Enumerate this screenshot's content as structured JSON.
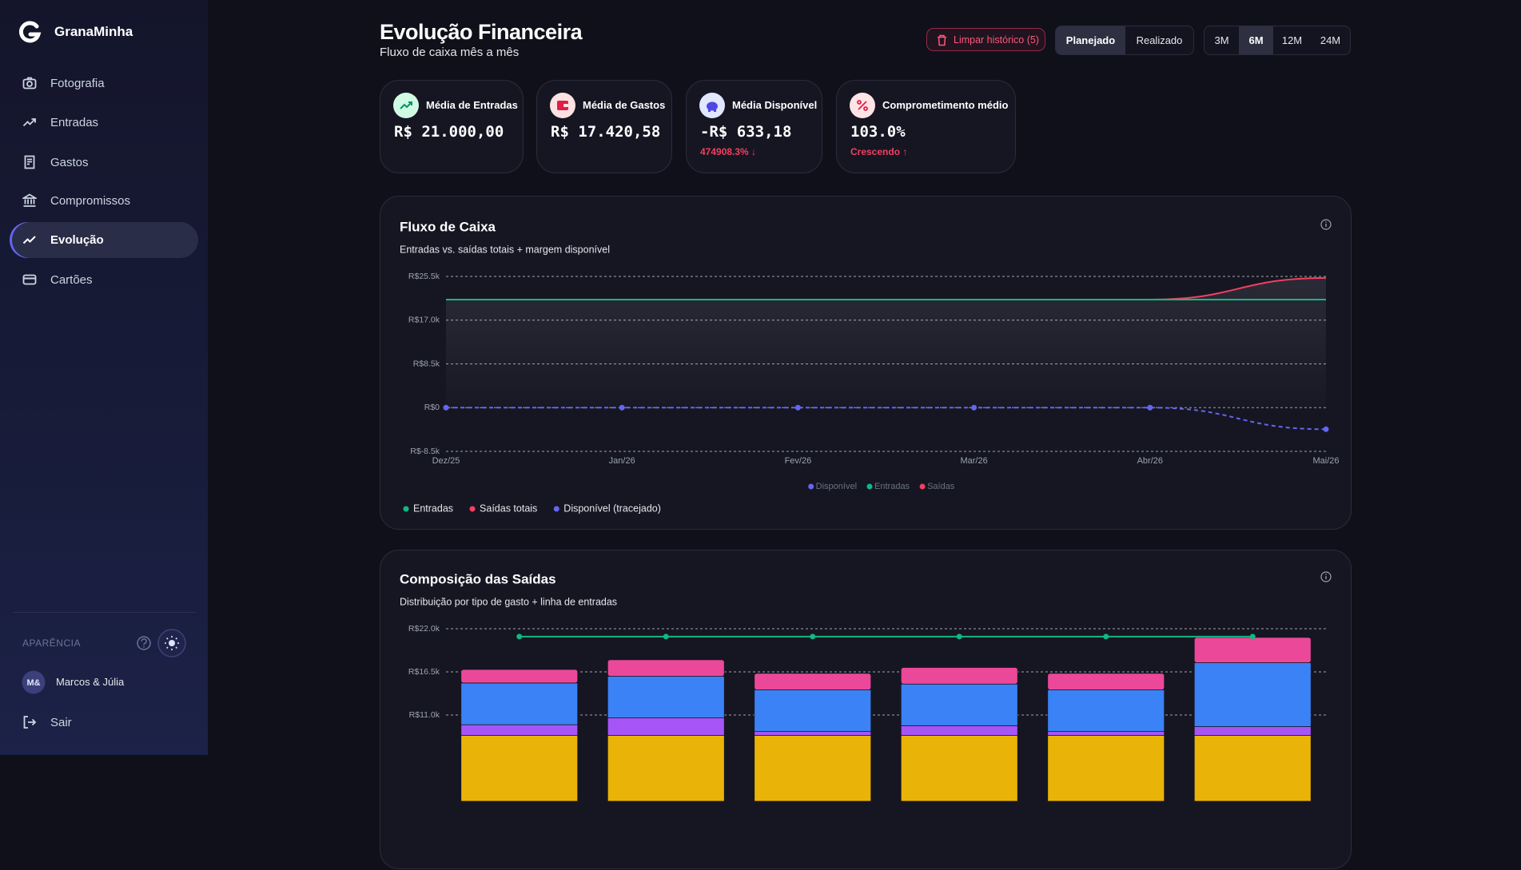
{
  "sidebar": {
    "brand": "GranaMinha",
    "nav": [
      "Fotografia",
      "Entradas",
      "Gastos",
      "Compromissos",
      "Evolução",
      "Cartões"
    ],
    "appearance": "APARÊNCIA",
    "user_initials": "M&",
    "user_name": "Marcos & Júlia",
    "logout": "Sair"
  },
  "header": {
    "title": "Evolução Financeira",
    "subtitle": "Fluxo de caixa mês a mês",
    "clear_history": "Limpar histórico (5)",
    "modes": [
      "Planejado",
      "Realizado"
    ],
    "periods": [
      "3M",
      "6M",
      "12M",
      "24M"
    ]
  },
  "stats": [
    {
      "label": "Média de Entradas",
      "value": "R$ 21.000,00"
    },
    {
      "label": "Média de Gastos",
      "value": "R$ 17.420,58"
    },
    {
      "label": "Média Disponível",
      "value": "-R$ 633,18",
      "note": "474908.3% ↓"
    },
    {
      "label": "Comprometimento médio",
      "value": "103.0%",
      "note": "Crescendo ↑"
    }
  ],
  "chart_data": [
    {
      "type": "line",
      "title": "Fluxo de Caixa",
      "subtitle": "Entradas vs. saídas totais + margem disponível",
      "categories": [
        "Dez/25",
        "Jan/26",
        "Fev/26",
        "Mar/26",
        "Abr/26",
        "Mai/26"
      ],
      "series": [
        {
          "name": "Disponível",
          "color": "#6366f1",
          "dashed": true,
          "markers": true,
          "values": [
            0,
            0,
            0,
            0,
            0,
            -4200
          ]
        },
        {
          "name": "Entradas",
          "color": "#10b981",
          "values": [
            21000,
            21000,
            21000,
            21000,
            21000,
            21000
          ]
        },
        {
          "name": "Saídas",
          "color": "#f43f5e",
          "area": true,
          "values": [
            21000,
            21000,
            21000,
            21000,
            21000,
            25200
          ]
        }
      ],
      "ylim": [
        -8500,
        25500
      ],
      "yticks": [
        {
          "value": 25500,
          "label": "R$25.5k"
        },
        {
          "value": 17000,
          "label": "R$17.0k"
        },
        {
          "value": 8500,
          "label": "R$8.5k"
        },
        {
          "value": 0,
          "label": "R$0"
        },
        {
          "value": -8500,
          "label": "R$-8.5k"
        }
      ],
      "grid": true,
      "legend_labels": [
        "Entradas",
        "Saídas totais",
        "Disponível (tracejado)"
      ],
      "legend_colors": [
        "#10b981",
        "#f43f5e",
        "#6366f1"
      ]
    },
    {
      "type": "bar",
      "stacked": true,
      "title": "Composição das Saídas",
      "subtitle": "Distribuição por tipo de gasto + linha de entradas",
      "categories": [
        null,
        null,
        null,
        null,
        null,
        null
      ],
      "series": [
        {
          "color": "#eab308",
          "values": [
            8400,
            8400,
            8400,
            8400,
            8400,
            8400
          ]
        },
        {
          "color": "#a855f7",
          "values": [
            1360,
            2230,
            500,
            1240,
            500,
            1120
          ]
        },
        {
          "color": "#3b82f6",
          "values": [
            5320,
            5310,
            5310,
            5310,
            5310,
            8150
          ]
        },
        {
          "color": "#ec4899",
          "values": [
            1730,
            2100,
            2100,
            2110,
            2100,
            3220
          ]
        },
        {
          "type": "line",
          "color": "#10b981",
          "values": [
            21000,
            21000,
            21000,
            21000,
            21000,
            21000
          ]
        }
      ],
      "ylim": [
        0,
        22000
      ],
      "yticks": [
        {
          "value": 22000,
          "label": "R$22.0k"
        },
        {
          "value": 16500,
          "label": "R$16.5k"
        },
        {
          "value": 11000,
          "label": "R$11.0k"
        }
      ],
      "grid": true
    }
  ]
}
